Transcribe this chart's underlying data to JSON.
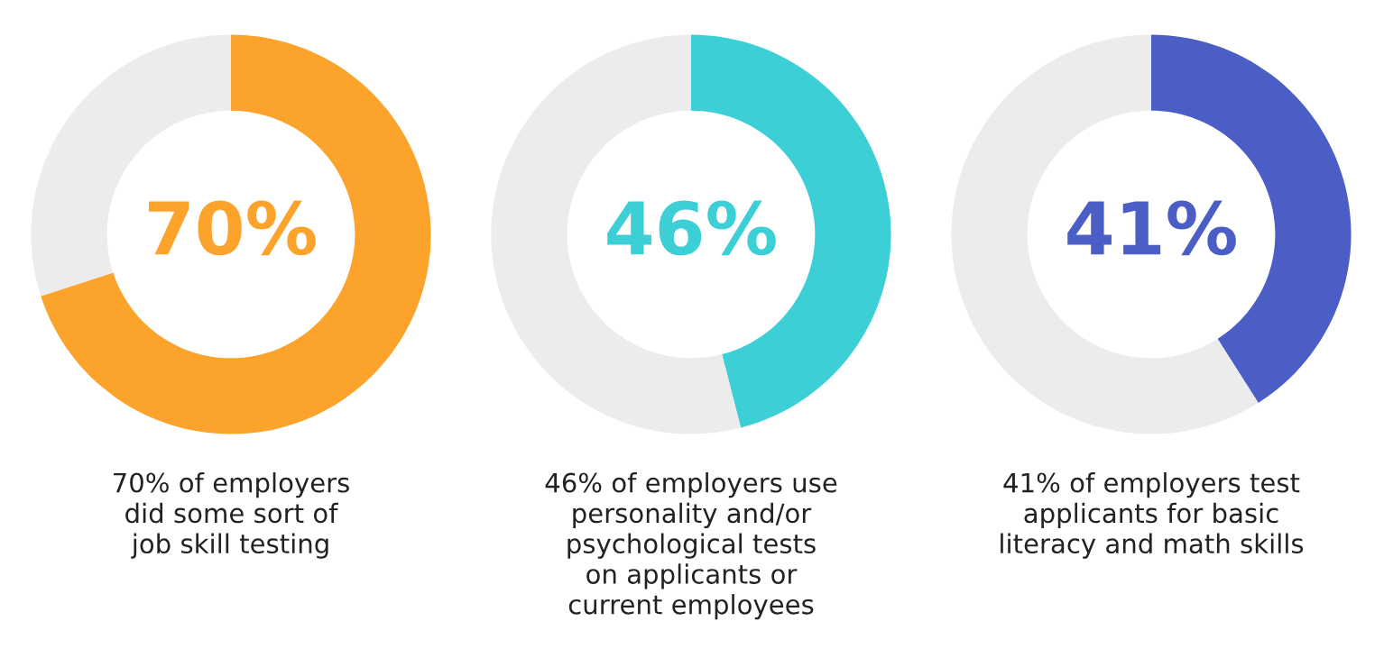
{
  "chart_data": [
    {
      "type": "donut",
      "categories": [
        null,
        null
      ],
      "values": [
        70,
        30
      ],
      "colors": [
        "#fca32b",
        "#ececec"
      ],
      "value_labels": [
        "70%",
        null
      ],
      "annotations": [
        "70% of employers\ndid some sort of\njob skill testing"
      ]
    },
    {
      "type": "donut",
      "categories": [
        null,
        null
      ],
      "values": [
        46,
        54
      ],
      "colors": [
        "#3dcfd6",
        "#ececec"
      ],
      "value_labels": [
        "46%",
        null
      ],
      "annotations": [
        "46% of employers use\npersonality and/or\npsychological tests\non applicants or\ncurrent employees"
      ]
    },
    {
      "type": "donut",
      "categories": [
        null,
        null
      ],
      "values": [
        41,
        59
      ],
      "colors": [
        "#4a5ec6",
        "#ececec"
      ],
      "value_labels": [
        "41%",
        null
      ],
      "annotations": [
        "41% of employers test\napplicants for basic\nliteracy and math skills"
      ]
    }
  ]
}
